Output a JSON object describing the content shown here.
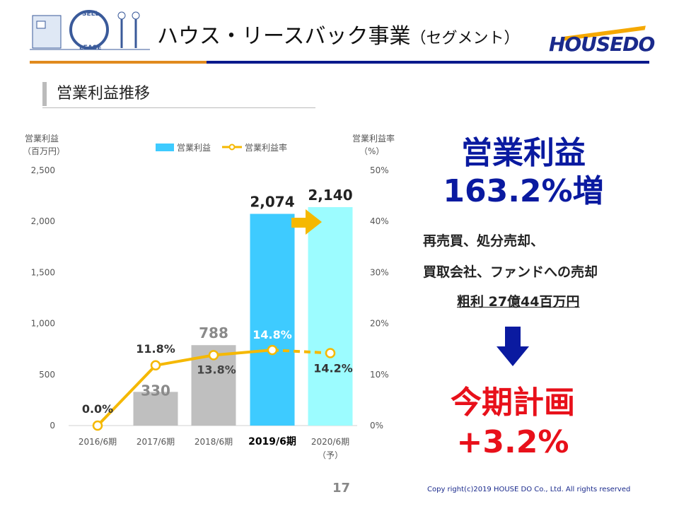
{
  "header": {
    "title": "ハウス・リースバック事業",
    "title_suffix": "（セグメント）",
    "brand": "HOUSEDO",
    "logo_text_top": "SELL",
    "logo_text_bottom": "LEASE"
  },
  "section": {
    "title": "営業利益推移"
  },
  "chart_data": {
    "type": "bar+line",
    "categories": [
      "2016/6期",
      "2017/6期",
      "2018/6期",
      "2019/6期",
      "2020/6期"
    ],
    "category_sub": [
      "",
      "",
      "",
      "",
      "（予）"
    ],
    "highlight_category": "2019/6期",
    "series": [
      {
        "name": "営業利益",
        "type": "bar",
        "axis": "left",
        "values": [
          0,
          330,
          788,
          2074,
          2140
        ],
        "labels": [
          "",
          "330",
          "788",
          "2,074",
          "2,140"
        ],
        "colors": [
          "#bfbfbf",
          "#bfbfbf",
          "#bfbfbf",
          "#3ecbff",
          "#9cfcff"
        ]
      },
      {
        "name": "営業利益率",
        "type": "line",
        "axis": "right",
        "values": [
          0.0,
          11.8,
          13.8,
          14.8,
          14.2
        ],
        "labels": [
          "0.0%",
          "11.8%",
          "13.8%",
          "14.8%",
          "14.2%"
        ],
        "color": "#f5b800",
        "forecast_dashed_from_index": 3
      }
    ],
    "left_axis": {
      "label": "営業利益",
      "unit": "（百万円）",
      "ylim": [
        0,
        2500
      ],
      "ticks": [
        "0",
        "500",
        "1,000",
        "1,500",
        "2,000",
        "2,500"
      ]
    },
    "right_axis": {
      "label": "営業利益率",
      "unit": "（%）",
      "ylim": [
        0,
        50
      ],
      "ticks": [
        "0%",
        "10%",
        "20%",
        "30%",
        "40%",
        "50%"
      ]
    },
    "legend_position": "top-center",
    "annotation_arrow_color": "#f5b800"
  },
  "highlight": {
    "line1": "営業利益",
    "line2": "163.2%増",
    "note1": "再売買、処分売却、",
    "note2": "買取会社、ファンドへの売却",
    "note3": "粗利 27億44百万円",
    "plan_line1": "今期計画",
    "plan_line2": "+3.2%"
  },
  "footer": {
    "page": "17",
    "copyright": "Copy right(c)2019  HOUSE DO Co., Ltd. All rights reserved"
  }
}
